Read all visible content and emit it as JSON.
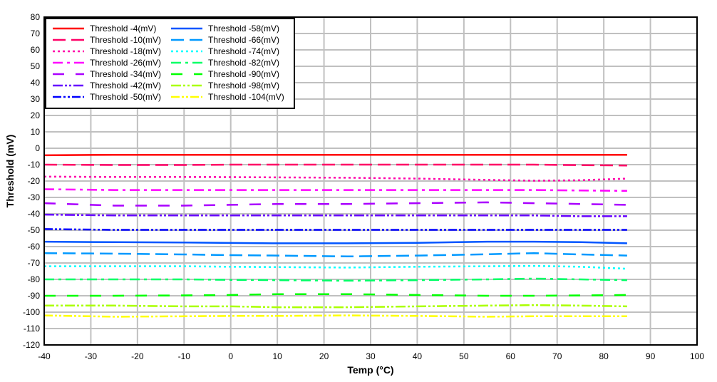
{
  "chart_data": {
    "type": "line",
    "title": "",
    "xlabel": "Temp (°C)",
    "ylabel": "Threshold (mV)",
    "xlim": [
      -40,
      100
    ],
    "ylim": [
      -120,
      80
    ],
    "xticks": [
      -40,
      -30,
      -20,
      -10,
      0,
      10,
      20,
      30,
      40,
      50,
      60,
      70,
      80,
      90,
      100
    ],
    "yticks": [
      80,
      70,
      60,
      50,
      40,
      30,
      20,
      10,
      0,
      -10,
      -20,
      -30,
      -40,
      -50,
      -60,
      -70,
      -80,
      -90,
      -100,
      -110,
      -120
    ],
    "grid": true,
    "legend_position": "upper-left",
    "x": [
      -40,
      -25,
      -10,
      0,
      10,
      25,
      40,
      55,
      65,
      75,
      85
    ],
    "series": [
      {
        "name": "Threshold -4(mV)",
        "color": "#ff0000",
        "dash": "",
        "values": [
          -4.3,
          -4.0,
          -4.0,
          -4.0,
          -4.0,
          -4.0,
          -4.0,
          -4.0,
          -4.0,
          -4.0,
          -4.0
        ]
      },
      {
        "name": "Threshold -10(mV)",
        "color": "#ff0066",
        "dash": "18,8",
        "values": [
          -10.0,
          -10.2,
          -10.2,
          -10.0,
          -10.0,
          -10.0,
          -10.0,
          -10.0,
          -10.0,
          -10.3,
          -10.5
        ]
      },
      {
        "name": "Threshold -18(mV)",
        "color": "#ff00aa",
        "dash": "3,4",
        "values": [
          -17.3,
          -17.5,
          -17.5,
          -17.6,
          -17.8,
          -18.0,
          -18.5,
          -19.3,
          -19.8,
          -19.5,
          -18.5
        ]
      },
      {
        "name": "Threshold -26(mV)",
        "color": "#ff00ff",
        "dash": "14,6,4,6",
        "values": [
          -25.0,
          -25.5,
          -25.5,
          -25.5,
          -25.5,
          -25.5,
          -25.5,
          -25.5,
          -25.5,
          -25.8,
          -26.0
        ]
      },
      {
        "name": "Threshold -34(mV)",
        "color": "#aa00ff",
        "dash": "16,16",
        "values": [
          -33.5,
          -35.0,
          -35.0,
          -34.5,
          -34.0,
          -34.0,
          -33.5,
          -33.0,
          -33.5,
          -34.0,
          -34.5
        ]
      },
      {
        "name": "Threshold -42(mV)",
        "color": "#6600ff",
        "dash": "14,3,3,3,3,3",
        "values": [
          -40.5,
          -41.0,
          -41.0,
          -41.0,
          -41.0,
          -41.0,
          -41.0,
          -41.0,
          -41.0,
          -41.5,
          -41.5
        ]
      },
      {
        "name": "Threshold -50(mV)",
        "color": "#0000ff",
        "dash": "12,3,3,3,3,3",
        "values": [
          -49.3,
          -49.8,
          -49.8,
          -49.8,
          -49.8,
          -49.8,
          -49.8,
          -49.8,
          -49.8,
          -49.8,
          -49.8
        ]
      },
      {
        "name": "Threshold -58(mV)",
        "color": "#0055ff",
        "dash": "",
        "values": [
          -57.0,
          -57.3,
          -57.5,
          -57.8,
          -58.0,
          -58.0,
          -57.7,
          -57.0,
          -57.0,
          -57.3,
          -58.0
        ]
      },
      {
        "name": "Threshold -66(mV)",
        "color": "#0099ff",
        "dash": "18,8",
        "values": [
          -64.0,
          -64.3,
          -64.8,
          -65.2,
          -65.5,
          -66.0,
          -65.5,
          -64.7,
          -64.0,
          -64.8,
          -65.5
        ]
      },
      {
        "name": "Threshold -74(mV)",
        "color": "#00ffff",
        "dash": "3,4",
        "values": [
          -72.0,
          -72.0,
          -72.0,
          -72.3,
          -72.5,
          -72.8,
          -72.3,
          -72.0,
          -71.8,
          -72.3,
          -73.5
        ]
      },
      {
        "name": "Threshold -82(mV)",
        "color": "#00ff66",
        "dash": "14,6,4,6",
        "values": [
          -80.0,
          -80.0,
          -80.0,
          -80.3,
          -80.5,
          -80.8,
          -80.5,
          -80.0,
          -79.5,
          -80.0,
          -80.5
        ]
      },
      {
        "name": "Threshold -90(mV)",
        "color": "#00ff00",
        "dash": "16,16",
        "values": [
          -90.0,
          -90.0,
          -89.8,
          -89.5,
          -89.0,
          -89.0,
          -89.5,
          -90.0,
          -90.0,
          -89.8,
          -89.5
        ]
      },
      {
        "name": "Threshold -98(mV)",
        "color": "#aaff00",
        "dash": "14,3,3,3,3,3",
        "values": [
          -96.0,
          -96.0,
          -96.5,
          -96.5,
          -97.0,
          -97.0,
          -96.5,
          -96.0,
          -95.7,
          -96.0,
          -96.5
        ]
      },
      {
        "name": "Threshold -104(mV)",
        "color": "#ffff00",
        "dash": "12,3,3,3,3,3",
        "values": [
          -102.0,
          -102.8,
          -102.5,
          -102.3,
          -102.3,
          -102.0,
          -102.3,
          -102.8,
          -102.5,
          -102.5,
          -102.5
        ]
      }
    ]
  }
}
